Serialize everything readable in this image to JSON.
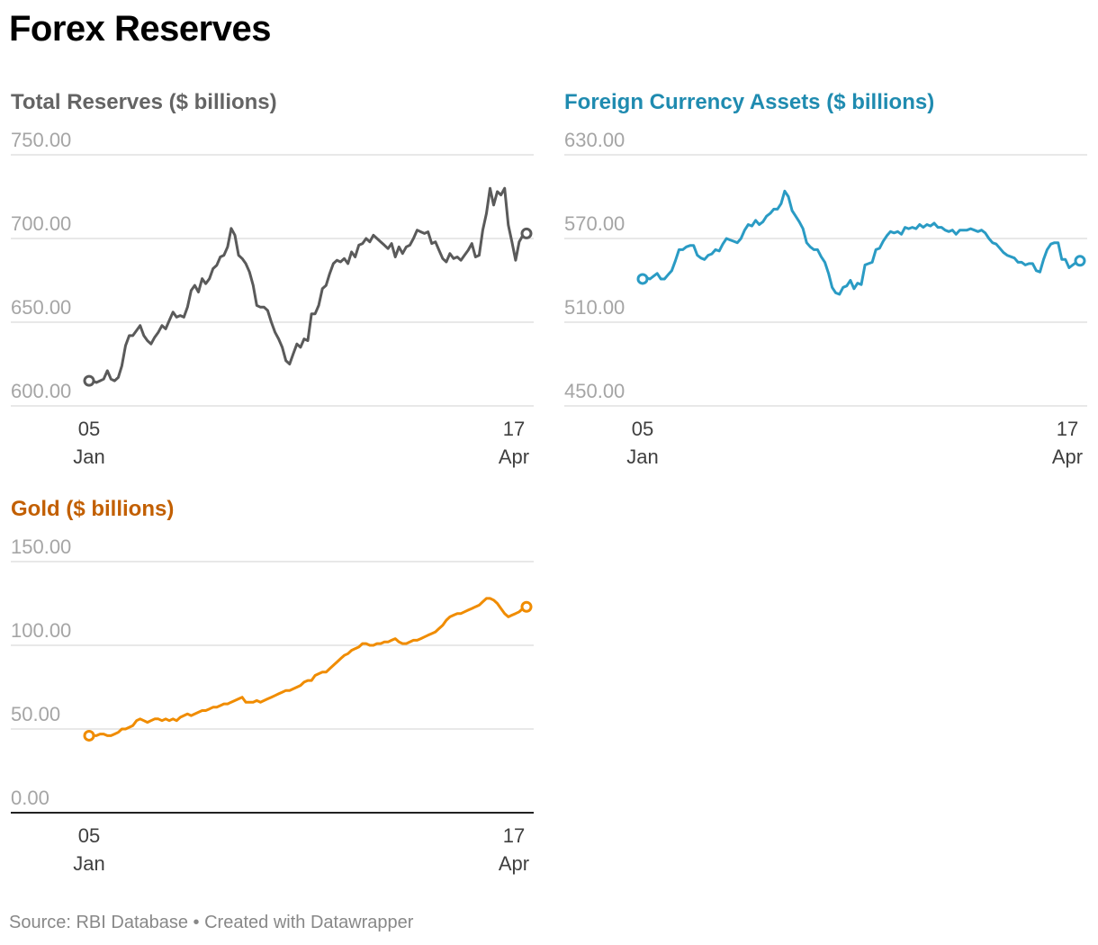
{
  "title": "Forex Reserves",
  "footer": "Source: RBI Database • Created with Datawrapper",
  "colors": {
    "total": "#5a5a5a",
    "fca": "#2a9bc4",
    "gold": "#f08c00",
    "title_total": "#646464",
    "title_fca": "#1f8bb0",
    "title_gold": "#c25f00"
  },
  "chart_data": [
    {
      "type": "line",
      "title": "Total Reserves ($ billions)",
      "yticks": [
        "750.00",
        "700.00",
        "650.00",
        "600.00"
      ],
      "ylim": [
        600,
        750
      ],
      "x_tick_labels": [
        {
          "day": "05",
          "month": "Jan"
        },
        {
          "day": "17",
          "month": "Apr"
        }
      ],
      "series": [
        {
          "values": [
            615,
            615,
            614,
            615,
            616,
            621,
            616,
            615,
            617,
            624,
            636,
            642,
            642,
            645,
            648,
            642,
            639,
            637,
            641,
            644,
            648,
            646,
            651,
            656,
            653,
            654,
            653,
            659,
            669,
            672,
            668,
            676,
            673,
            676,
            682,
            684,
            689,
            690,
            695,
            706,
            702,
            690,
            688,
            685,
            680,
            672,
            660,
            659,
            659,
            657,
            650,
            644,
            640,
            635,
            627,
            625,
            631,
            637,
            635,
            640,
            639,
            655,
            655,
            660,
            670,
            672,
            679,
            685,
            687,
            686,
            688,
            685,
            692,
            689,
            696,
            697,
            700,
            698,
            702,
            700,
            698,
            696,
            694,
            697,
            689,
            695,
            691,
            695,
            696,
            700,
            705,
            704,
            703,
            704,
            697,
            698,
            693,
            688,
            686,
            691,
            688,
            689,
            687,
            690,
            693,
            697,
            689,
            690,
            705,
            715,
            730,
            720,
            728,
            726,
            730,
            708,
            698,
            687,
            698,
            702,
            703
          ]
        }
      ]
    },
    {
      "type": "line",
      "title": "Foreign Currency Assets ($ billions)",
      "yticks": [
        "630.00",
        "570.00",
        "510.00",
        "450.00"
      ],
      "ylim": [
        450,
        630
      ],
      "x_tick_labels": [
        {
          "day": "05",
          "month": "Jan"
        },
        {
          "day": "17",
          "month": "Apr"
        }
      ],
      "series": [
        {
          "values": [
            541,
            542,
            541,
            543,
            545,
            541,
            541,
            544,
            547,
            554,
            562,
            562,
            564,
            565,
            565,
            558,
            556,
            555,
            558,
            559,
            562,
            561,
            566,
            570,
            569,
            568,
            567,
            570,
            576,
            580,
            579,
            583,
            580,
            582,
            586,
            588,
            591,
            591,
            595,
            604,
            600,
            590,
            586,
            582,
            577,
            567,
            564,
            562,
            562,
            557,
            553,
            545,
            535,
            531,
            530,
            535,
            536,
            540,
            534,
            538,
            537,
            551,
            552,
            553,
            562,
            563,
            568,
            572,
            575,
            574,
            575,
            573,
            578,
            577,
            578,
            577,
            580,
            578,
            580,
            579,
            581,
            578,
            578,
            576,
            575,
            576,
            573,
            576,
            576,
            576,
            577,
            576,
            575,
            576,
            574,
            570,
            567,
            566,
            563,
            560,
            558,
            557,
            556,
            553,
            553,
            551,
            552,
            552,
            547,
            546,
            555,
            562,
            566,
            567,
            567,
            555,
            555,
            549,
            551,
            553,
            554
          ]
        }
      ]
    },
    {
      "type": "line",
      "title": "Gold ($ billions)",
      "yticks": [
        "150.00",
        "100.00",
        "50.00",
        "0.00"
      ],
      "ylim": [
        0,
        150
      ],
      "x_tick_labels": [
        {
          "day": "05",
          "month": "Jan"
        },
        {
          "day": "17",
          "month": "Apr"
        }
      ],
      "series": [
        {
          "values": [
            46,
            46,
            46,
            47,
            47,
            46,
            46,
            47,
            48,
            50,
            50,
            51,
            52,
            55,
            56,
            55,
            54,
            55,
            56,
            56,
            55,
            56,
            55,
            56,
            55,
            57,
            58,
            59,
            58,
            59,
            60,
            61,
            61,
            62,
            63,
            63,
            64,
            65,
            65,
            66,
            67,
            68,
            69,
            66,
            66,
            66,
            67,
            66,
            67,
            68,
            69,
            70,
            71,
            72,
            73,
            73,
            74,
            75,
            76,
            78,
            79,
            79,
            82,
            83,
            84,
            84,
            86,
            88,
            90,
            92,
            94,
            95,
            97,
            98,
            99,
            101,
            101,
            100,
            100,
            101,
            101,
            102,
            102,
            103,
            104,
            102,
            101,
            101,
            102,
            103,
            103,
            104,
            105,
            106,
            107,
            108,
            110,
            112,
            115,
            117,
            118,
            119,
            119,
            120,
            121,
            122,
            123,
            124,
            126,
            128,
            128,
            127,
            125,
            122,
            119,
            117,
            118,
            119,
            120,
            122,
            123
          ]
        }
      ]
    }
  ]
}
